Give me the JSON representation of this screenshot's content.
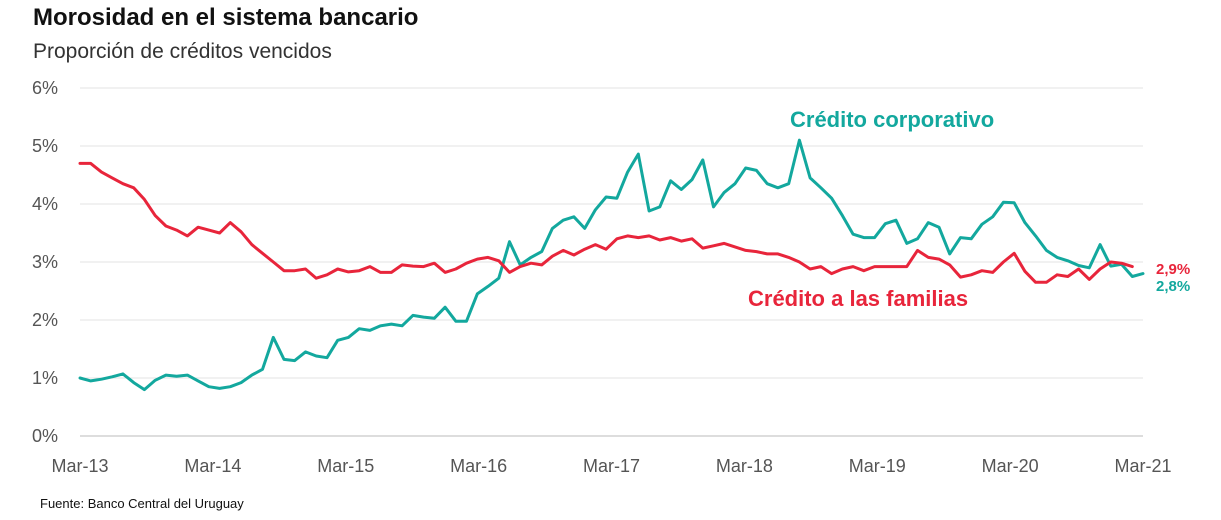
{
  "title": "Morosidad en el sistema bancario",
  "subtitle": "Proporción de créditos vencidos",
  "source": "Fuente: Banco Central del Uruguay",
  "chart_data": {
    "type": "line",
    "title": "Morosidad en el sistema bancario",
    "subtitle": "Proporción de créditos vencidos",
    "xlabel": "",
    "ylabel": "",
    "ylim": [
      0,
      6
    ],
    "y_ticks": [
      "0%",
      "1%",
      "2%",
      "3%",
      "4%",
      "5%",
      "6%"
    ],
    "x_ticks": [
      "Mar-13",
      "Mar-14",
      "Mar-15",
      "Mar-16",
      "Mar-17",
      "Mar-18",
      "Mar-19",
      "Mar-20",
      "Mar-21"
    ],
    "x_start": "Mar-13",
    "x_end": "Mar-21",
    "grid": "horizontal",
    "legend": "inline labels",
    "series": [
      {
        "name": "Crédito corporativo",
        "color": "#13a89e",
        "end_label": "2,8%",
        "values": [
          1.0,
          0.95,
          0.98,
          1.02,
          1.07,
          0.92,
          0.8,
          0.96,
          1.05,
          1.03,
          1.05,
          0.95,
          0.85,
          0.82,
          0.85,
          0.92,
          1.05,
          1.15,
          1.7,
          1.32,
          1.3,
          1.45,
          1.38,
          1.35,
          1.65,
          1.7,
          1.85,
          1.82,
          1.9,
          1.93,
          1.9,
          2.08,
          2.05,
          2.03,
          2.22,
          1.98,
          1.98,
          2.45,
          2.58,
          2.72,
          3.35,
          2.95,
          3.08,
          3.18,
          3.58,
          3.72,
          3.78,
          3.58,
          3.9,
          4.12,
          4.1,
          4.55,
          4.86,
          3.88,
          3.95,
          4.4,
          4.25,
          4.42,
          4.76,
          3.95,
          4.2,
          4.35,
          4.62,
          4.58,
          4.35,
          4.28,
          4.35,
          5.1,
          4.45,
          4.28,
          4.1,
          3.8,
          3.48,
          3.42,
          3.42,
          3.66,
          3.72,
          3.32,
          3.4,
          3.68,
          3.6,
          3.14,
          3.42,
          3.4,
          3.65,
          3.78,
          4.03,
          4.02,
          3.68,
          3.45,
          3.2,
          3.08,
          3.02,
          2.94,
          2.9,
          3.3,
          2.93,
          2.96,
          2.75,
          2.8
        ]
      },
      {
        "name": "Crédito a las familias",
        "color": "#e8253b",
        "end_label": "2,9%",
        "values": [
          4.7,
          4.7,
          4.55,
          4.45,
          4.35,
          4.28,
          4.08,
          3.8,
          3.62,
          3.55,
          3.45,
          3.6,
          3.55,
          3.5,
          3.68,
          3.52,
          3.3,
          3.15,
          3.0,
          2.85,
          2.85,
          2.88,
          2.72,
          2.78,
          2.88,
          2.83,
          2.85,
          2.92,
          2.82,
          2.82,
          2.95,
          2.93,
          2.92,
          2.98,
          2.82,
          2.88,
          2.98,
          3.05,
          3.08,
          3.02,
          2.82,
          2.92,
          2.98,
          2.95,
          3.1,
          3.2,
          3.12,
          3.22,
          3.3,
          3.22,
          3.4,
          3.45,
          3.42,
          3.45,
          3.38,
          3.42,
          3.36,
          3.4,
          3.24,
          3.28,
          3.32,
          3.26,
          3.2,
          3.18,
          3.14,
          3.14,
          3.08,
          3.0,
          2.88,
          2.92,
          2.8,
          2.88,
          2.92,
          2.85,
          2.92,
          2.92,
          2.92,
          2.92,
          3.2,
          3.08,
          3.05,
          2.95,
          2.74,
          2.78,
          2.85,
          2.82,
          3.0,
          3.15,
          2.84,
          2.65,
          2.65,
          2.78,
          2.75,
          2.88,
          2.7,
          2.88,
          3.0,
          2.98,
          2.92
        ]
      }
    ]
  }
}
